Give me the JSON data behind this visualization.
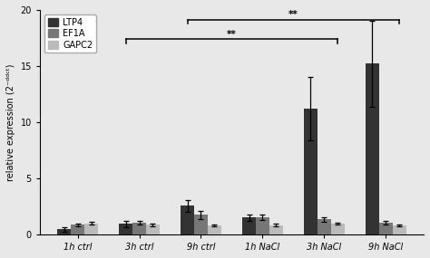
{
  "categories": [
    "1h ctrl",
    "3h ctrl",
    "9h ctrl",
    "1h NaCl",
    "3h NaCl",
    "9h NaCl"
  ],
  "series": {
    "LTP4": {
      "values": [
        0.45,
        0.95,
        2.55,
        1.5,
        11.2,
        15.2
      ],
      "errors": [
        0.2,
        0.3,
        0.55,
        0.3,
        2.8,
        3.8
      ],
      "color": "#333333"
    },
    "EF1A": {
      "values": [
        0.85,
        1.05,
        1.75,
        1.55,
        1.35,
        1.05
      ],
      "errors": [
        0.12,
        0.18,
        0.35,
        0.22,
        0.18,
        0.18
      ],
      "color": "#777777"
    },
    "GAPC2": {
      "values": [
        1.0,
        0.88,
        0.82,
        0.82,
        0.98,
        0.78
      ],
      "errors": [
        0.12,
        0.12,
        0.08,
        0.12,
        0.1,
        0.08
      ],
      "color": "#bbbbbb"
    }
  },
  "ylabel": "relative expression (2⁻ᵈᵈᶜᵗ)",
  "ylim": [
    0,
    20
  ],
  "yticks": [
    0,
    5,
    10,
    15,
    20
  ],
  "bar_width": 0.22,
  "background_color": "#e8e8e8",
  "plot_bg_color": "#e8e8e8",
  "legend_order": [
    "LTP4",
    "EF1A",
    "GAPC2"
  ]
}
